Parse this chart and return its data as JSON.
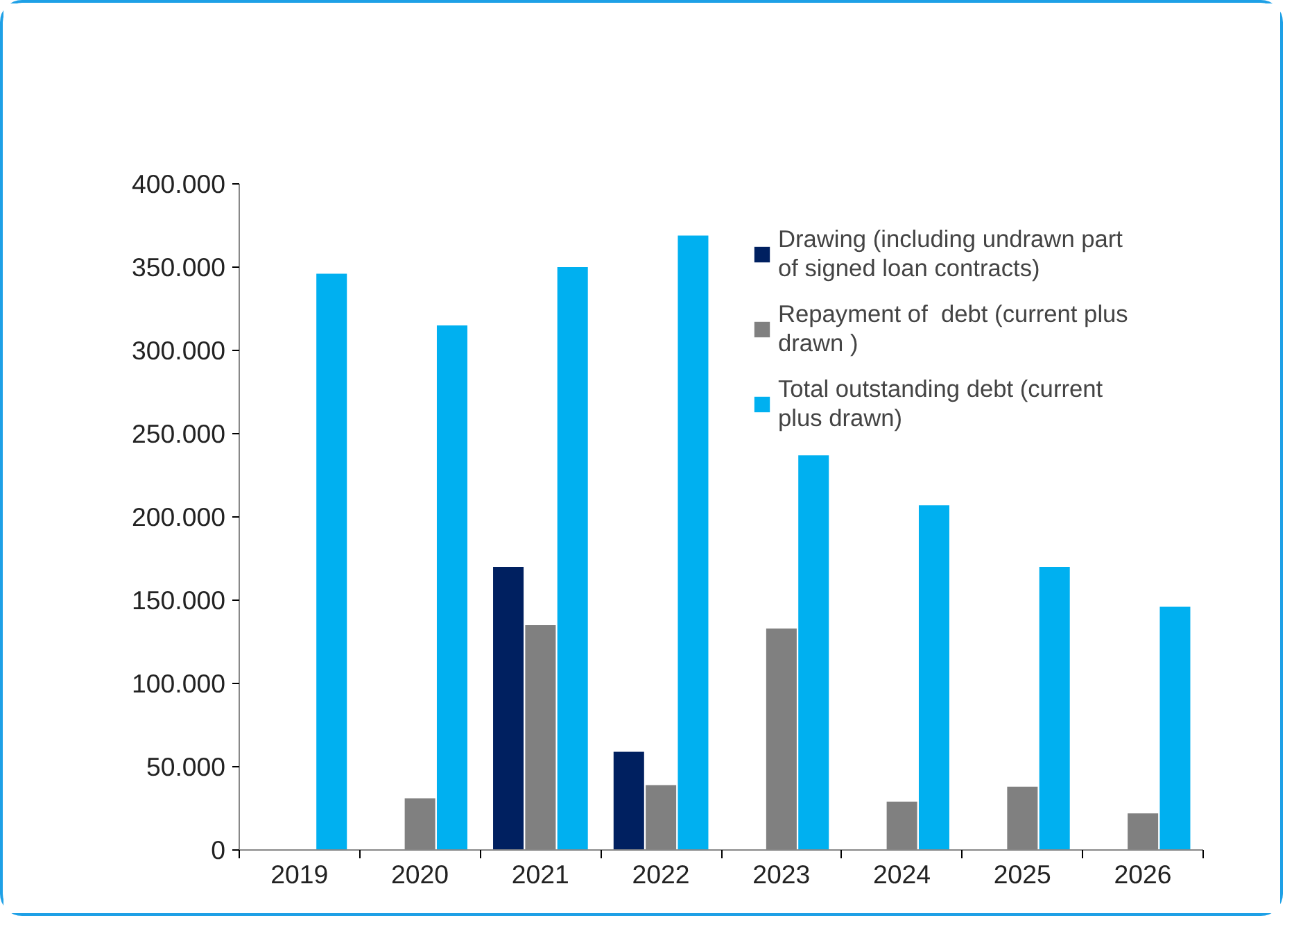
{
  "chart_data": {
    "type": "bar",
    "categories": [
      "2019",
      "2020",
      "2021",
      "2022",
      "2023",
      "2024",
      "2025",
      "2026"
    ],
    "series": [
      {
        "name": "Drawing (including undrawn part of signed loan contracts)",
        "color": "#002060",
        "values": [
          null,
          null,
          170000,
          59000,
          null,
          null,
          null,
          null
        ]
      },
      {
        "name": "Repayment of  debt (current plus drawn )",
        "color": "#808080",
        "values": [
          null,
          31000,
          135000,
          39000,
          133000,
          29000,
          38000,
          22000
        ]
      },
      {
        "name": "Total outstanding debt (current plus drawn)",
        "color": "#00b0f0",
        "values": [
          346000,
          315000,
          350000,
          369000,
          237000,
          207000,
          170000,
          146000
        ]
      }
    ],
    "ylim": [
      0,
      400000
    ],
    "yticks": [
      {
        "value": 0,
        "label": "0"
      },
      {
        "value": 50000,
        "label": "50.000"
      },
      {
        "value": 100000,
        "label": "100.000"
      },
      {
        "value": 150000,
        "label": "150.000"
      },
      {
        "value": 200000,
        "label": "200.000"
      },
      {
        "value": 250000,
        "label": "250.000"
      },
      {
        "value": 300000,
        "label": "300.000"
      },
      {
        "value": 350000,
        "label": "350.000"
      },
      {
        "value": 400000,
        "label": "400.000"
      }
    ],
    "grid": false,
    "legend": "top right"
  }
}
